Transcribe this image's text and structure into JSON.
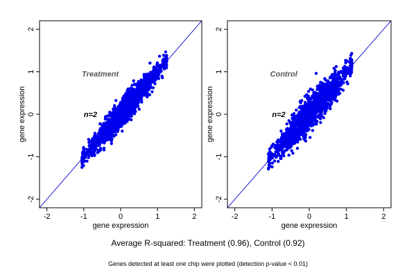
{
  "chart_data": [
    {
      "type": "scatter",
      "title": "Treatment",
      "annotation": "n=2",
      "xlabel": "gene expression",
      "ylabel": "gene expression",
      "xlim": [
        -2.2,
        2.2
      ],
      "ylim": [
        -2.2,
        2.2
      ],
      "xticks": [
        "-2",
        "-1",
        "0",
        "1",
        "2"
      ],
      "yticks": [
        "-2",
        "-1",
        "0",
        "1",
        "2"
      ],
      "reference_line": "y = x",
      "point_color": "#0000ee",
      "line_color": "#0000cc",
      "grid": false,
      "point_cloud": {
        "x_range": [
          -1.05,
          1.25
        ],
        "correlation": 0.96
      }
    },
    {
      "type": "scatter",
      "title": "Control",
      "annotation": "n=2",
      "xlabel": "gene expression",
      "ylabel": "gene expression",
      "xlim": [
        -2.2,
        2.2
      ],
      "ylim": [
        -2.2,
        2.2
      ],
      "xticks": [
        "-2",
        "-1",
        "0",
        "1",
        "2"
      ],
      "yticks": [
        "-2",
        "-1",
        "0",
        "1",
        "2"
      ],
      "reference_line": "y = x",
      "point_color": "#0000ee",
      "line_color": "#0000cc",
      "grid": false,
      "point_cloud": {
        "x_range": [
          -1.1,
          1.15
        ],
        "correlation": 0.92
      }
    }
  ],
  "summary": "Average R-squared: Treatment (0.96), Control (0.92)",
  "footnote": "Genes detected at least one chip were plotted (detection p-value < 0.01)"
}
